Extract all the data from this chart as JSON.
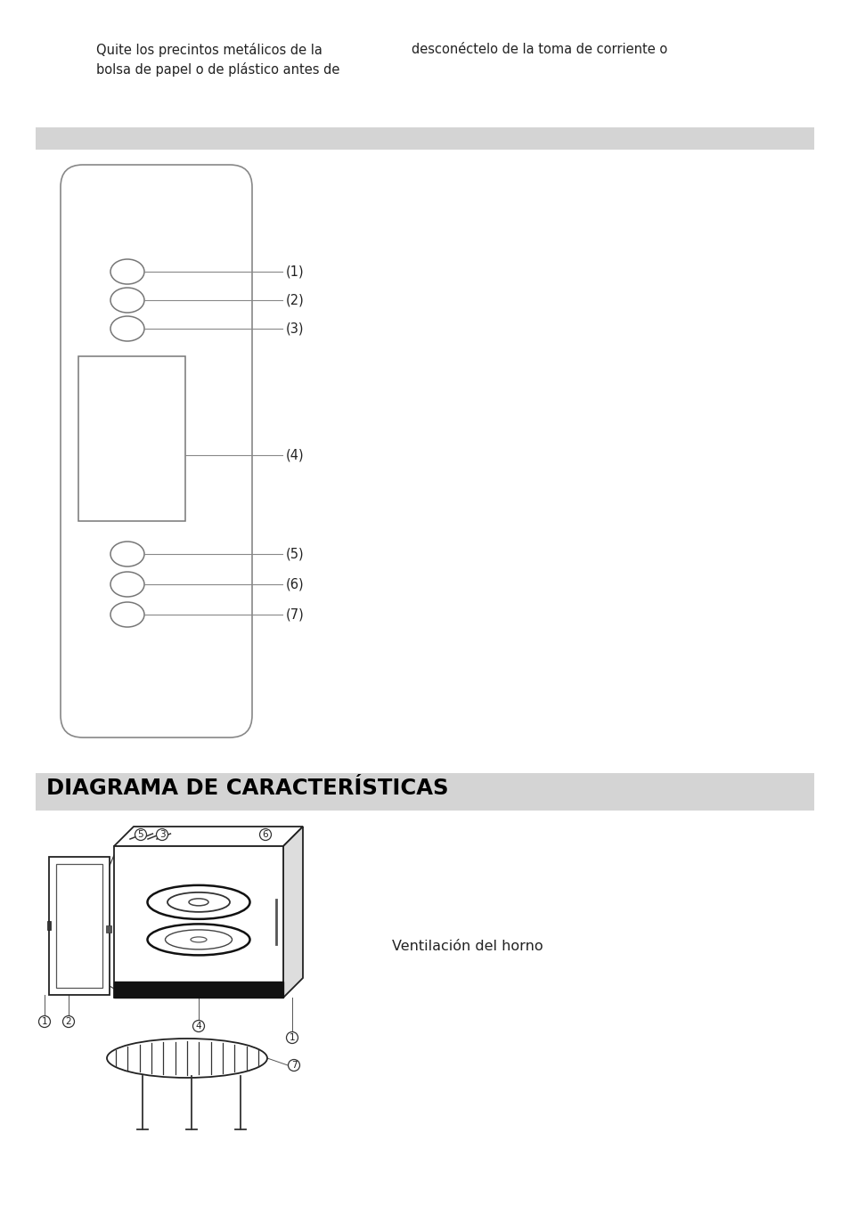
{
  "text_top_left": "Quite los precintos metálicos de la\nbolsa de papel o de plástico antes de",
  "text_top_right": "desconéctelo de la toma de corriente o",
  "section2_title": "DIAGRAMA DE CARACTERÍSTICAS",
  "ventilation_text": "Ventilación del horno",
  "bg_color": "#ffffff",
  "gray_bar_color": "#d4d4d4",
  "line_color": "#555555",
  "text_color": "#222222",
  "title2_color": "#000000",
  "panel_labels": [
    "(1)",
    "(2)",
    "(3)",
    "(4)",
    "(5)",
    "(6)",
    "(7)"
  ]
}
